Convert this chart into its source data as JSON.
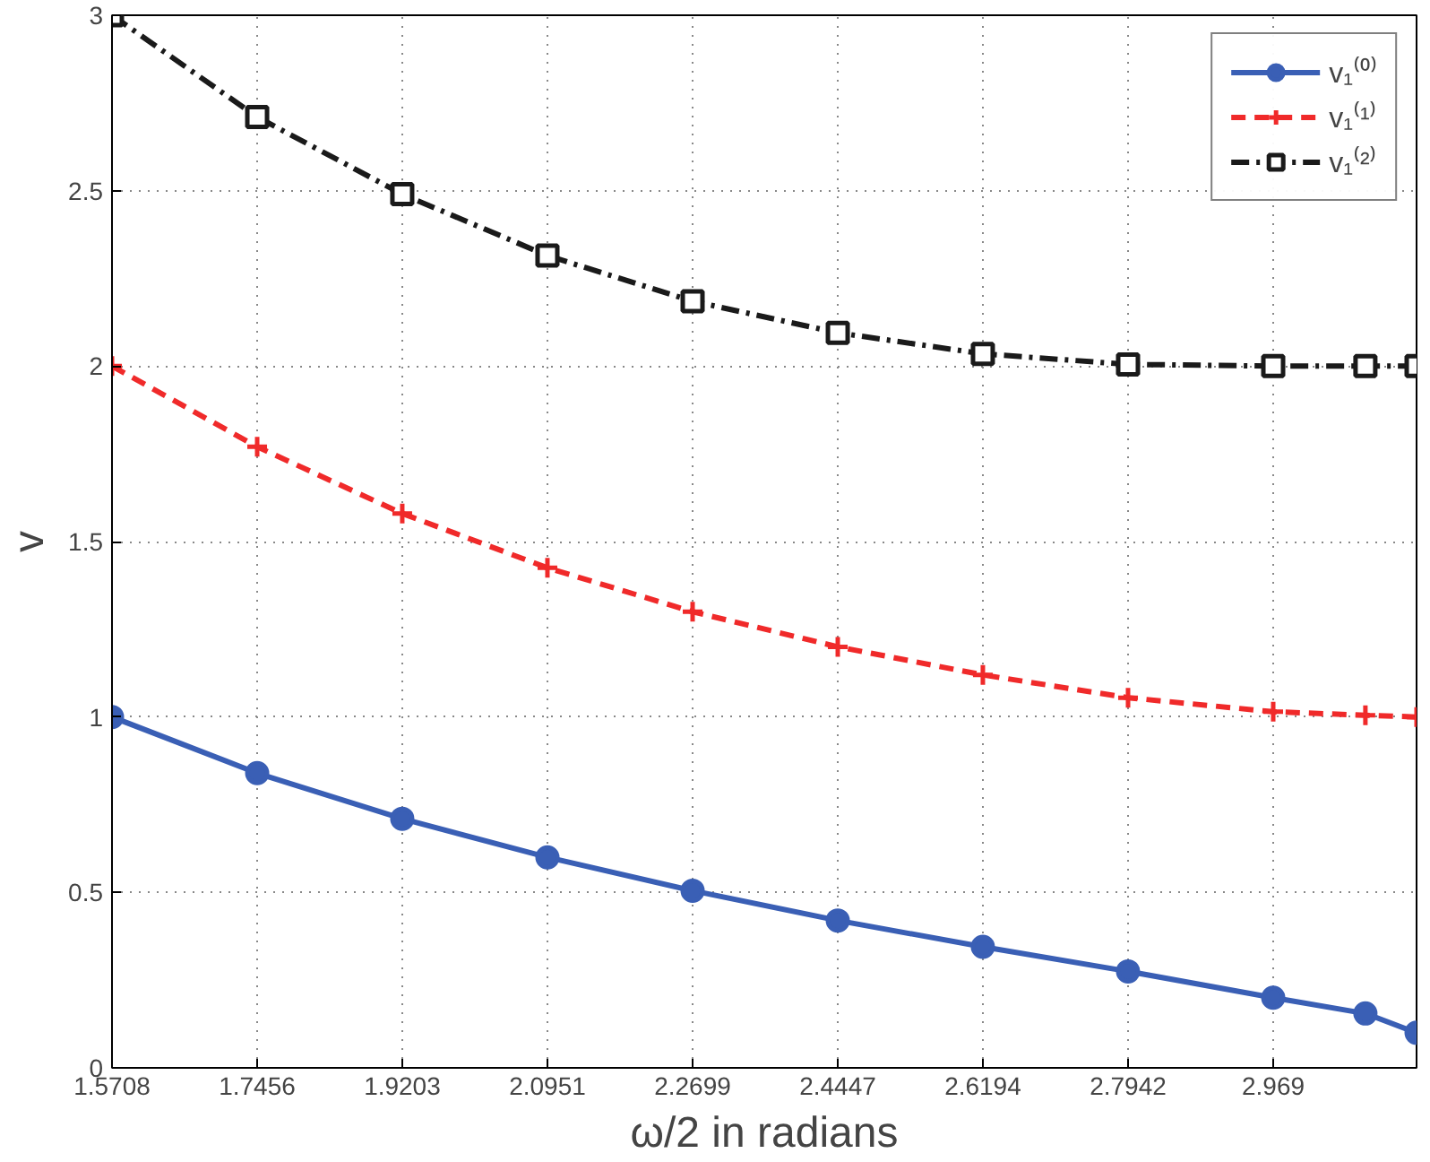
{
  "chart_data": {
    "type": "line",
    "xlabel": "ω/2 in radians",
    "ylabel": "v",
    "x": [
      1.5708,
      1.7456,
      1.9203,
      2.0951,
      2.2699,
      2.4447,
      2.6194,
      2.7942,
      2.969,
      3.08,
      3.1416
    ],
    "xlim": [
      1.5708,
      3.1416
    ],
    "xticks": [
      1.5708,
      1.7456,
      1.9203,
      2.0951,
      2.2699,
      2.4447,
      2.6194,
      2.7942,
      2.969
    ],
    "ylim": [
      0,
      3
    ],
    "yticks": [
      0,
      0.5,
      1,
      1.5,
      2,
      2.5,
      3
    ],
    "grid": true,
    "legend": "top right",
    "series": [
      {
        "name": "v₁⁽⁰⁾",
        "color": "#3a5fb5",
        "marker": "circle",
        "line_style": "solid",
        "values": [
          1.0,
          0.84,
          0.71,
          0.6,
          0.505,
          0.42,
          0.345,
          0.275,
          0.2,
          0.155,
          0.1
        ]
      },
      {
        "name": "v₁⁽¹⁾",
        "color": "#f02a2a",
        "marker": "cross",
        "line_style": "dashed",
        "values": [
          2.0,
          1.77,
          1.58,
          1.425,
          1.3,
          1.2,
          1.12,
          1.055,
          1.015,
          1.005,
          1.0
        ]
      },
      {
        "name": "v₁⁽²⁾",
        "color": "#1a1a1a",
        "marker": "square",
        "line_style": "dashdot",
        "values": [
          3.0,
          2.71,
          2.49,
          2.315,
          2.185,
          2.095,
          2.035,
          2.005,
          2.0,
          2.0,
          2.0
        ]
      }
    ]
  }
}
